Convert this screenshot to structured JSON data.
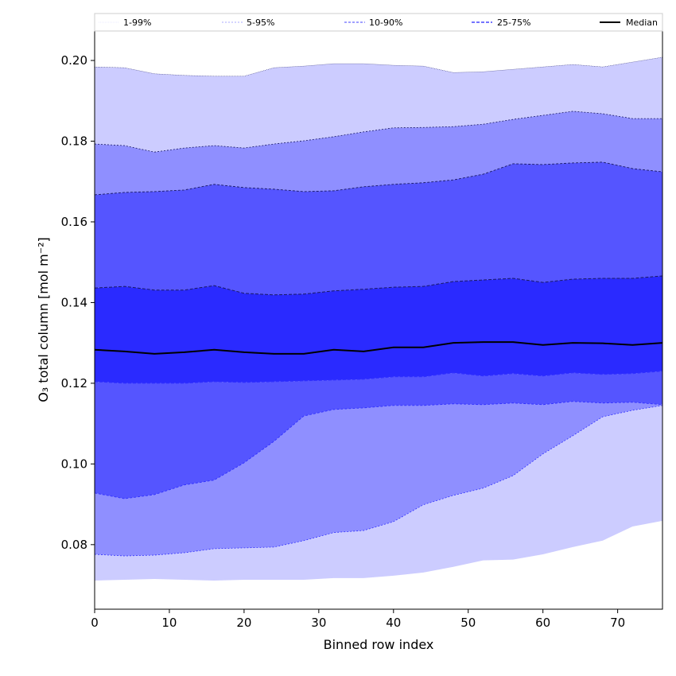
{
  "chart_data": {
    "type": "area",
    "title": "",
    "xlabel": "Binned row index",
    "ylabel": "O₃ total column [mol m⁻²]",
    "xlim": [
      0,
      76
    ],
    "ylim": [
      0.064,
      0.2073
    ],
    "xticks": [
      0,
      10,
      20,
      30,
      40,
      50,
      60,
      70
    ],
    "xtick_labels": [
      "0",
      "10",
      "20",
      "30",
      "40",
      "50",
      "60",
      "70"
    ],
    "yticks": [
      0.08,
      0.1,
      0.12,
      0.14,
      0.16,
      0.18,
      0.2
    ],
    "ytick_labels": [
      "0.08",
      "0.10",
      "0.12",
      "0.14",
      "0.16",
      "0.18",
      "0.20"
    ],
    "grid": false,
    "legend_position": "top, above plot",
    "legend": [
      {
        "label": "1-99%",
        "color": "#d8d8ff"
      },
      {
        "label": "5-95%",
        "color": "#a8a8ff"
      },
      {
        "label": "10-90%",
        "color": "#8080ff"
      },
      {
        "label": "25-75%",
        "color": "#6060ff"
      },
      {
        "label": "Median",
        "color": "#000000"
      }
    ],
    "band_colors": {
      "1-99%": "#ccccff",
      "5-95%": "#8f8fff",
      "10-90%": "#5555ff",
      "25-75%": "#2a2aff"
    },
    "x": [
      0,
      4,
      8,
      12,
      16,
      20,
      24,
      28,
      32,
      36,
      40,
      44,
      48,
      52,
      56,
      60,
      64,
      68,
      72,
      76
    ],
    "series": {
      "p99": [
        0.1984,
        0.1982,
        0.1967,
        0.1963,
        0.1961,
        0.1961,
        0.1982,
        0.1986,
        0.1992,
        0.1992,
        0.1988,
        0.1986,
        0.197,
        0.1972,
        0.1978,
        0.1984,
        0.199,
        0.1984,
        0.1996,
        0.2008
      ],
      "p95": [
        0.1793,
        0.1789,
        0.1773,
        0.1783,
        0.1789,
        0.1783,
        0.1793,
        0.1801,
        0.1811,
        0.1823,
        0.1833,
        0.1834,
        0.1836,
        0.1842,
        0.1854,
        0.1864,
        0.1874,
        0.1868,
        0.1856,
        0.1856
      ],
      "p90": [
        0.1667,
        0.1673,
        0.1675,
        0.1679,
        0.1693,
        0.1685,
        0.1681,
        0.1675,
        0.1677,
        0.1687,
        0.1693,
        0.1697,
        0.1704,
        0.1718,
        0.1744,
        0.1742,
        0.1746,
        0.1748,
        0.1732,
        0.1724
      ],
      "p75": [
        0.1436,
        0.144,
        0.1431,
        0.1431,
        0.1442,
        0.1423,
        0.1419,
        0.1421,
        0.1429,
        0.1433,
        0.1438,
        0.144,
        0.1452,
        0.1456,
        0.146,
        0.145,
        0.1458,
        0.146,
        0.146,
        0.1466
      ],
      "median": [
        0.1283,
        0.1279,
        0.1273,
        0.1277,
        0.1283,
        0.1277,
        0.1273,
        0.1273,
        0.1283,
        0.1279,
        0.1289,
        0.1289,
        0.13,
        0.1302,
        0.1302,
        0.1295,
        0.13,
        0.1299,
        0.1295,
        0.13
      ],
      "p25": [
        0.1204,
        0.12,
        0.12,
        0.12,
        0.1204,
        0.1202,
        0.1204,
        0.1206,
        0.1208,
        0.121,
        0.1216,
        0.1216,
        0.1226,
        0.1218,
        0.1224,
        0.1218,
        0.1226,
        0.1222,
        0.1224,
        0.123
      ],
      "p10": [
        0.0928,
        0.0914,
        0.0924,
        0.0948,
        0.096,
        0.1003,
        0.1056,
        0.1119,
        0.1135,
        0.1139,
        0.1145,
        0.1145,
        0.1149,
        0.1147,
        0.1151,
        0.1147,
        0.1155,
        0.1151,
        0.1153,
        0.1147
      ],
      "p5": [
        0.0776,
        0.0772,
        0.0774,
        0.078,
        0.079,
        0.0792,
        0.0794,
        0.081,
        0.083,
        0.0835,
        0.0857,
        0.0899,
        0.0922,
        0.094,
        0.0971,
        0.1025,
        0.107,
        0.1117,
        0.1133,
        0.1145
      ],
      "p1": [
        0.0711,
        0.0713,
        0.0715,
        0.0713,
        0.0711,
        0.0713,
        0.0713,
        0.0713,
        0.0717,
        0.0717,
        0.0723,
        0.0731,
        0.0745,
        0.0761,
        0.0763,
        0.0776,
        0.0794,
        0.081,
        0.0845,
        0.0859
      ]
    }
  }
}
